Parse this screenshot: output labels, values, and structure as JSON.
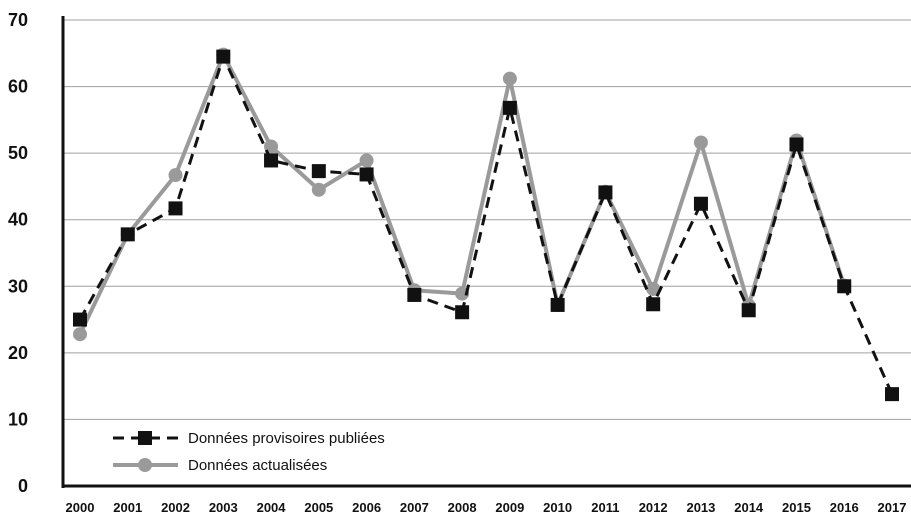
{
  "chart_data": {
    "type": "line",
    "x": [
      "2000",
      "2001",
      "2002",
      "2003",
      "2004",
      "2005",
      "2006",
      "2007",
      "2008",
      "2009",
      "2010",
      "2011",
      "2012",
      "2013",
      "2014",
      "2015",
      "2016",
      "2017"
    ],
    "ylim": [
      0,
      70
    ],
    "yticks": [
      0,
      10,
      20,
      30,
      40,
      50,
      60,
      70
    ],
    "grid": true,
    "legend_position": "bottom-left",
    "series": [
      {
        "name": "Données provisoires publiées",
        "style": "dashed",
        "marker": "square",
        "color": "#111111",
        "values": [
          25,
          37.8,
          41.7,
          64.5,
          48.9,
          47.3,
          46.8,
          28.7,
          26.1,
          56.8,
          27.2,
          44.1,
          27.3,
          42.4,
          26.4,
          51.3,
          30.0,
          13.8
        ]
      },
      {
        "name": "Données actualisées",
        "style": "solid",
        "marker": "circle",
        "color": "#9a9a9a",
        "values": [
          22.8,
          37.8,
          46.7,
          64.8,
          51.0,
          44.5,
          48.9,
          29.4,
          28.9,
          61.2,
          27.2,
          44.2,
          29.6,
          51.6,
          27.1,
          51.9,
          30.1,
          null
        ]
      }
    ]
  }
}
